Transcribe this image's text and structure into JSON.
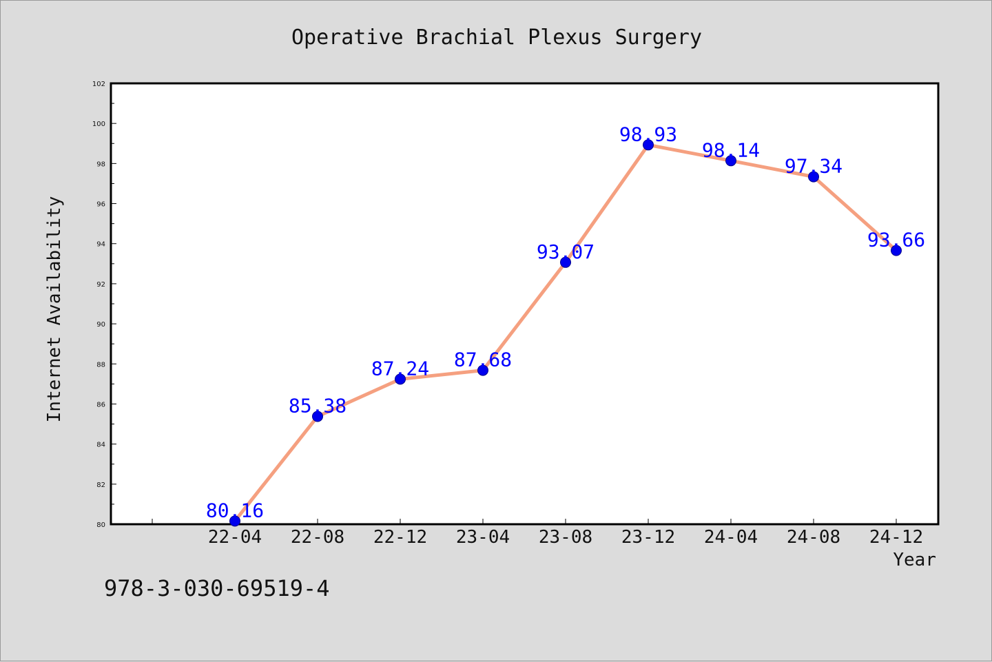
{
  "chart_data": {
    "type": "line",
    "title": "Operative Brachial Plexus Surgery",
    "xlabel": "Year",
    "ylabel": "Internet Availability",
    "categories": [
      "22-04",
      "22-08",
      "22-12",
      "23-04",
      "23-08",
      "23-12",
      "24-04",
      "24-08",
      "24-12"
    ],
    "values": [
      80.16,
      85.38,
      87.24,
      87.68,
      93.07,
      98.93,
      98.14,
      97.34,
      93.66
    ],
    "data_labels": [
      "80.16",
      "85.38",
      "87.24",
      "87.68",
      "93.07",
      "98.93",
      "98.14",
      "97.34",
      "93.66"
    ],
    "ylim": [
      80,
      102
    ],
    "yticks": [
      80,
      82,
      84,
      86,
      88,
      90,
      92,
      94,
      96,
      98,
      100,
      102
    ],
    "grid": false,
    "line_color": "#f5a080",
    "marker_color": "#0000ee",
    "label_color": "#0000ff"
  },
  "footer": {
    "isbn": "978-3-030-69519-4"
  }
}
